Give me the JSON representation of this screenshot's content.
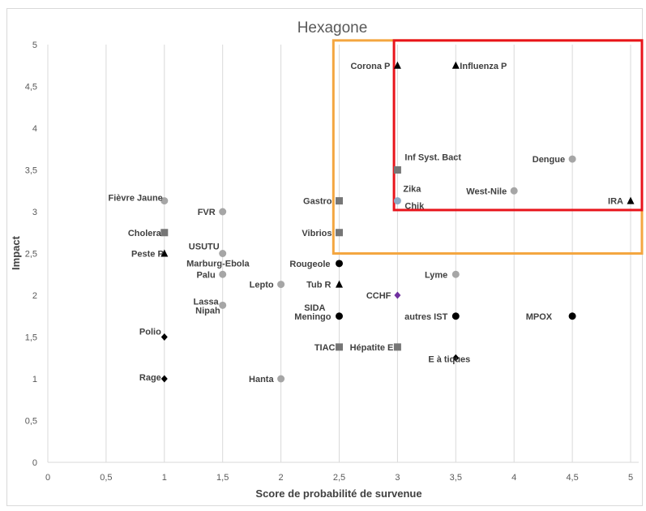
{
  "chart_data": {
    "type": "scatter",
    "title": "Hexagone",
    "xlabel": "Score de probabilité de survenue",
    "ylabel": "Impact",
    "xlim": [
      0,
      5
    ],
    "ylim": [
      0,
      5
    ],
    "x_ticks": [
      "0",
      "0,5",
      "1",
      "1,5",
      "2",
      "2,5",
      "3",
      "3,5",
      "4",
      "4,5",
      "5"
    ],
    "y_ticks": [
      "0",
      "0,5",
      "1",
      "1,5",
      "2",
      "2,5",
      "3",
      "3,5",
      "4",
      "4,5",
      "5"
    ],
    "grid": "vertical",
    "colors": {
      "grey": "#a6a6a6",
      "dark_grey": "#767676",
      "black": "#000000",
      "blue_grey": "#8eaac4",
      "purple": "#7030a0",
      "orange_box": "#f4a640",
      "red_box": "#e8141b"
    },
    "highlight_boxes": [
      {
        "color": "orange",
        "x_range": [
          2.45,
          5.1
        ],
        "y_range": [
          2.5,
          5.05
        ]
      },
      {
        "color": "red",
        "x_range": [
          2.97,
          5.1
        ],
        "y_range": [
          3.02,
          5.05
        ]
      }
    ],
    "points": [
      {
        "label": "Corona P",
        "x": 3.0,
        "y": 4.75,
        "marker": "triangle",
        "color": "black"
      },
      {
        "label": "Influenza P",
        "x": 3.5,
        "y": 4.75,
        "marker": "triangle",
        "color": "black"
      },
      {
        "label": "Inf Syst. Bact",
        "x": 3.0,
        "y": 3.5,
        "marker": "square",
        "color": "dark_grey"
      },
      {
        "label": "Dengue",
        "x": 4.5,
        "y": 3.63,
        "marker": "circle",
        "color": "grey"
      },
      {
        "label": "Zika",
        "x": 3.0,
        "y": 3.13,
        "marker": "circle",
        "color": "blue_grey"
      },
      {
        "label": "Chik",
        "x": 3.0,
        "y": 3.13,
        "marker": "circle",
        "color": "blue_grey"
      },
      {
        "label": "West-Nile",
        "x": 4.0,
        "y": 3.25,
        "marker": "circle",
        "color": "grey"
      },
      {
        "label": "IRA",
        "x": 5.0,
        "y": 3.13,
        "marker": "triangle",
        "color": "black"
      },
      {
        "label": "Fièvre Jaune",
        "x": 1.0,
        "y": 3.13,
        "marker": "circle",
        "color": "grey"
      },
      {
        "label": "FVR",
        "x": 1.5,
        "y": 3.0,
        "marker": "circle",
        "color": "grey"
      },
      {
        "label": "Gastro",
        "x": 2.5,
        "y": 3.13,
        "marker": "square",
        "color": "dark_grey"
      },
      {
        "label": "Cholera",
        "x": 1.0,
        "y": 2.75,
        "marker": "square",
        "color": "dark_grey"
      },
      {
        "label": "Vibrios",
        "x": 2.5,
        "y": 2.75,
        "marker": "square",
        "color": "dark_grey"
      },
      {
        "label": "USUTU",
        "x": 1.5,
        "y": 2.5,
        "marker": "circle",
        "color": "grey"
      },
      {
        "label": "Peste P",
        "x": 1.0,
        "y": 2.5,
        "marker": "triangle",
        "color": "black"
      },
      {
        "label": "Marburg-Ebola",
        "x": 1.5,
        "y": 2.5,
        "marker": "circle",
        "color": "grey"
      },
      {
        "label": "Rougeole",
        "x": 2.5,
        "y": 2.38,
        "marker": "circle",
        "color": "black"
      },
      {
        "label": "Palu",
        "x": 1.5,
        "y": 2.25,
        "marker": "circle",
        "color": "grey"
      },
      {
        "label": "Lyme",
        "x": 3.5,
        "y": 2.25,
        "marker": "circle",
        "color": "grey"
      },
      {
        "label": "Lepto",
        "x": 2.0,
        "y": 2.13,
        "marker": "circle",
        "color": "grey"
      },
      {
        "label": "Tub R",
        "x": 2.5,
        "y": 2.13,
        "marker": "triangle",
        "color": "black"
      },
      {
        "label": "CCHF",
        "x": 3.0,
        "y": 2.0,
        "marker": "diamond",
        "color": "purple"
      },
      {
        "label": "Lassa",
        "x": 1.5,
        "y": 1.88,
        "marker": "circle",
        "color": "grey"
      },
      {
        "label": "Nipah",
        "x": 1.5,
        "y": 1.88,
        "marker": "circle",
        "color": "grey"
      },
      {
        "label": "SIDA",
        "x": 2.5,
        "y": 1.75,
        "marker": "circle",
        "color": "black"
      },
      {
        "label": "Meningo",
        "x": 2.5,
        "y": 1.75,
        "marker": "circle",
        "color": "black"
      },
      {
        "label": "autres IST",
        "x": 3.5,
        "y": 1.75,
        "marker": "circle",
        "color": "black"
      },
      {
        "label": "MPOX",
        "x": 4.5,
        "y": 1.75,
        "marker": "circle",
        "color": "black"
      },
      {
        "label": "Polio",
        "x": 1.0,
        "y": 1.5,
        "marker": "diamond",
        "color": "black"
      },
      {
        "label": "TIAC",
        "x": 2.5,
        "y": 1.38,
        "marker": "square",
        "color": "dark_grey"
      },
      {
        "label": "Hépatite E",
        "x": 3.0,
        "y": 1.38,
        "marker": "square",
        "color": "dark_grey"
      },
      {
        "label": "E à tiques",
        "x": 3.5,
        "y": 1.25,
        "marker": "diamond",
        "color": "black"
      },
      {
        "label": "Rage",
        "x": 1.0,
        "y": 1.0,
        "marker": "diamond",
        "color": "black"
      },
      {
        "label": "Hanta",
        "x": 2.0,
        "y": 1.0,
        "marker": "circle",
        "color": "grey"
      }
    ]
  }
}
